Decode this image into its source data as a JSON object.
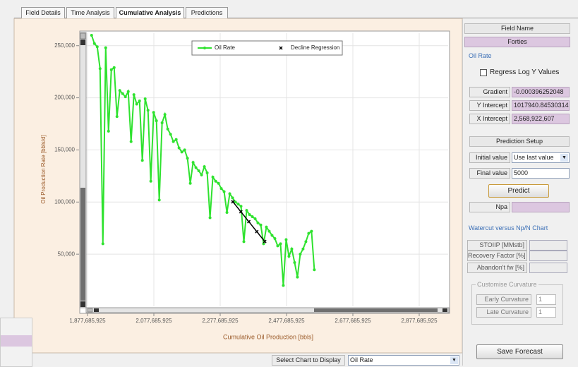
{
  "tabs": [
    "Field Details",
    "Time Analysis",
    "Cumulative Analysis",
    "Predictions"
  ],
  "chart_data": {
    "type": "line",
    "xlabel": "Cumulative Oil Production [bbls]",
    "ylabel": "Oil Production Rate [bbls/d]",
    "xlim": [
      1873430000,
      2964900000
    ],
    "ylim": [
      0,
      262000
    ],
    "xticks": [
      {
        "value": 1877685925,
        "label": "1,877,685,925"
      },
      {
        "value": 2077685925,
        "label": "2,077,685,925"
      },
      {
        "value": 2277685925,
        "label": "2,277,685,925"
      },
      {
        "value": 2477685925,
        "label": "2,477,685,925"
      },
      {
        "value": 2677685925,
        "label": "2,677,685,925"
      },
      {
        "value": 2877685925,
        "label": "2,877,685,925"
      }
    ],
    "yticks": [
      {
        "value": 50000,
        "label": "50,000"
      },
      {
        "value": 100000,
        "label": "100,000"
      },
      {
        "value": 150000,
        "label": "150,000"
      },
      {
        "value": 200000,
        "label": "200,000"
      },
      {
        "value": 250000,
        "label": "250,000"
      }
    ],
    "grid": true,
    "legend": "top",
    "series": [
      {
        "name": "Oil Rate",
        "color": "#2fe22f",
        "marker": "circle",
        "x": [
          1890000000,
          1898500000,
          1907000000,
          1915500000,
          1924000000,
          1932500000,
          1941000000,
          1949500000,
          1958000000,
          1966500000,
          1975000000,
          1983500000,
          1992000000,
          2000500000,
          2009000000,
          2017500000,
          2026000000,
          2034500000,
          2043000000,
          2051500000,
          2060000000,
          2068500000,
          2077000000,
          2085500000,
          2094000000,
          2102500000,
          2111000000,
          2119500000,
          2128000000,
          2136500000,
          2145000000,
          2153500000,
          2162000000,
          2170500000,
          2179000000,
          2187500000,
          2196000000,
          2204500000,
          2213000000,
          2221500000,
          2230000000,
          2238500000,
          2247000000,
          2255500000,
          2264000000,
          2272500000,
          2281000000,
          2289500000,
          2298000000,
          2306500000,
          2315000000,
          2323500000,
          2332000000,
          2340500000,
          2349000000,
          2357500000,
          2366000000,
          2374500000,
          2383000000,
          2391500000,
          2400000000,
          2408500000,
          2417000000,
          2425500000,
          2434000000,
          2442500000,
          2451000000,
          2459500000,
          2468000000,
          2476500000,
          2485000000,
          2493500000,
          2502000000,
          2510500000,
          2519000000,
          2527500000,
          2536000000,
          2544500000,
          2553000000,
          2561500000
        ],
        "values": [
          260000,
          252000,
          249000,
          228000,
          60000,
          248000,
          168000,
          227000,
          229000,
          182000,
          207000,
          204000,
          201000,
          206000,
          158000,
          203000,
          194000,
          197000,
          140000,
          199000,
          188000,
          120000,
          186000,
          178000,
          102000,
          176000,
          184000,
          170000,
          165000,
          158000,
          160000,
          152000,
          148000,
          150000,
          142000,
          118000,
          138000,
          133000,
          130000,
          126000,
          134000,
          128000,
          85000,
          124000,
          120000,
          118000,
          113000,
          110000,
          90000,
          108000,
          104000,
          100000,
          98000,
          96000,
          62000,
          92000,
          88000,
          86000,
          84000,
          80000,
          78000,
          60000,
          76000,
          72000,
          68000,
          65000,
          58000,
          60000,
          20000,
          64000,
          48000,
          55000,
          42000,
          28000,
          50000,
          55000,
          62000,
          70000,
          72000,
          35000
        ]
      },
      {
        "name": "Decline Regression",
        "color": "#000000",
        "marker": "x",
        "x": [
          2316000000,
          2340000000,
          2364000000,
          2388000000,
          2412000000
        ],
        "values": [
          100220,
          90710,
          81200,
          71690,
          62180
        ]
      }
    ]
  },
  "right_panel": {
    "field_name_label": "Field Name",
    "field_name": "Forties",
    "oil_rate_group": "Oil Rate",
    "regress_checkbox": "Regress Log Y Values",
    "gradient_label": "Gradient",
    "gradient": "-0.000396252048",
    "y_intercept_label": "Y Intercept",
    "y_intercept": "1017940.8453031400",
    "x_intercept_label": "X Intercept",
    "x_intercept": "2,568,922,607",
    "prediction_setup": "Prediction Setup",
    "initial_value_label": "Initial value",
    "initial_value": "Use last value",
    "final_value_label": "Final value",
    "final_value": "5000",
    "predict_button": "Predict",
    "npa_label": "Npa",
    "watercut_group": "Watercut versus Np/N Chart",
    "stoiip_label": "STOIIP [MMstb]",
    "recovery_factor_label": "Recovery Factor [%]",
    "abandon_fw_label": "Abandon't fw [%]",
    "customise_group": "Customise Curvature",
    "early_curvature_label": "Early Curvature",
    "early_curvature": "1",
    "late_curvature_label": "Late Curvature",
    "late_curvature": "1",
    "save_button": "Save Forecast"
  },
  "bottom": {
    "select_label": "Select Chart to Display",
    "selected_chart": "Oil Rate"
  }
}
